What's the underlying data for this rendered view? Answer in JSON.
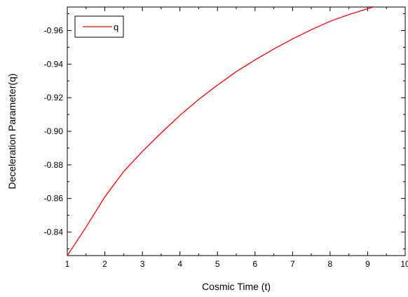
{
  "chart_data": {
    "type": "line",
    "xlabel": "Cosmic Time (t)",
    "ylabel": "Deceleration Parameter(q)",
    "xlim": [
      1,
      10
    ],
    "ylim": [
      -0.826,
      -0.974
    ],
    "y_axis_reversed": true,
    "x_ticks": [
      1,
      2,
      3,
      4,
      5,
      6,
      7,
      8,
      9,
      10
    ],
    "x_tick_labels": [
      "1",
      "2",
      "3",
      "4",
      "5",
      "6",
      "7",
      "8",
      "9",
      "10"
    ],
    "y_ticks": [
      -0.84,
      -0.86,
      -0.88,
      -0.9,
      -0.92,
      -0.94,
      -0.96
    ],
    "y_tick_labels": [
      "-0.84",
      "-0.86",
      "-0.88",
      "-0.90",
      "-0.92",
      "-0.94",
      "-0.96"
    ],
    "grid": false,
    "legend_position": "top-left",
    "series": [
      {
        "name": "q",
        "color": "#ff0000",
        "x": [
          1,
          1.5,
          2,
          2.5,
          3,
          3.5,
          4,
          4.5,
          5,
          5.5,
          6,
          6.5,
          7,
          7.5,
          8,
          8.5,
          9,
          9.5,
          10
        ],
        "y": [
          -0.826,
          -0.843,
          -0.861,
          -0.876,
          -0.888,
          -0.899,
          -0.9095,
          -0.919,
          -0.9275,
          -0.9355,
          -0.9425,
          -0.949,
          -0.955,
          -0.9605,
          -0.9655,
          -0.9695,
          -0.973,
          -0.9762,
          -0.979
        ]
      }
    ]
  }
}
